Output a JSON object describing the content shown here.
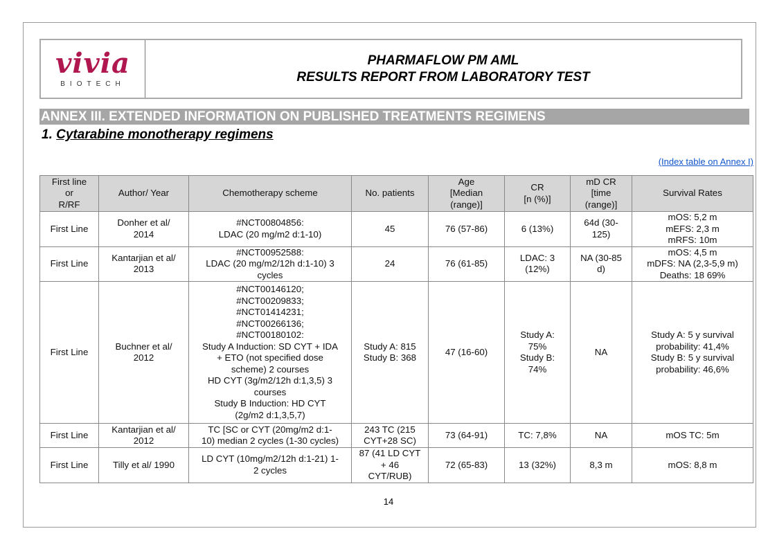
{
  "header": {
    "logo_text": "vivia",
    "logo_sub": "BIOTECH",
    "title_line1": "PHARMAFLOW PM AML",
    "title_line2": "RESULTS REPORT FROM LABORATORY TEST"
  },
  "annex_title": "ANNEX III. EXTENDED INFORMATION ON PUBLISHED TREATMENTS REGIMENS",
  "section": {
    "number": "1.",
    "title": "Cytarabine monotherapy regimens"
  },
  "index_link": "(Index table on Annex I)",
  "table": {
    "headers": [
      "First line\nor\nR/RF",
      "Author/ Year",
      "Chemotherapy scheme",
      "No. patients",
      "Age\n[Median\n(range)]",
      "CR\n[n (%)]",
      "mD CR\n[time\n(range)]",
      "Survival Rates"
    ],
    "rows": [
      [
        "First Line",
        "Donher et al/\n2014",
        "#NCT00804856:\nLDAC (20 mg/m2 d:1-10)",
        "45",
        "76 (57-86)",
        "6 (13%)",
        "64d (30-\n125)",
        "mOS: 5,2 m\nmEFS: 2,3 m\nmRFS: 10m"
      ],
      [
        "First Line",
        "Kantarjian et al/\n2013",
        "#NCT00952588:\nLDAC (20 mg/m2/12h d:1-10) 3\ncycles",
        "24",
        "76 (61-85)",
        "LDAC: 3\n(12%)",
        "NA (30-85\nd)",
        "mOS: 4,5 m\nmDFS: NA (2,3-5,9 m)\nDeaths: 18 69%"
      ],
      [
        "First Line",
        "Buchner et al/\n2012",
        "#NCT00146120;\n#NCT00209833;\n#NCT01414231;\n#NCT00266136;\n#NCT00180102:\nStudy A Induction: SD CYT + IDA\n+ ETO (not specified dose\nscheme) 2 courses\nHD CYT (3g/m2/12h d:1,3,5) 3\ncourses\nStudy B Induction: HD CYT\n(2g/m2 d:1,3,5,7)",
        "Study A: 815\nStudy B: 368",
        "47 (16-60)",
        "Study A:\n75%\nStudy B:\n74%",
        "NA",
        "Study A: 5 y survival\nprobability: 41,4%\nStudy B: 5 y survival\nprobability: 46,6%"
      ],
      [
        "First Line",
        "Kantarjian et al/\n2012",
        "TC [SC or CYT (20mg/m2 d:1-\n10) median 2 cycles (1-30 cycles)",
        "243 TC (215\nCYT+28 SC)",
        "73 (64-91)",
        "TC: 7,8%",
        "NA",
        "mOS TC: 5m"
      ],
      [
        "First Line",
        "Tilly et al/ 1990",
        "LD CYT (10mg/m2/12h d:1-21) 1-\n2 cycles",
        "87 (41 LD CYT\n+ 46\nCYT/RUB)",
        "72 (65-83)",
        "13 (32%)",
        "8,3 m",
        "mOS: 8,8 m"
      ]
    ]
  },
  "page_number": "14"
}
